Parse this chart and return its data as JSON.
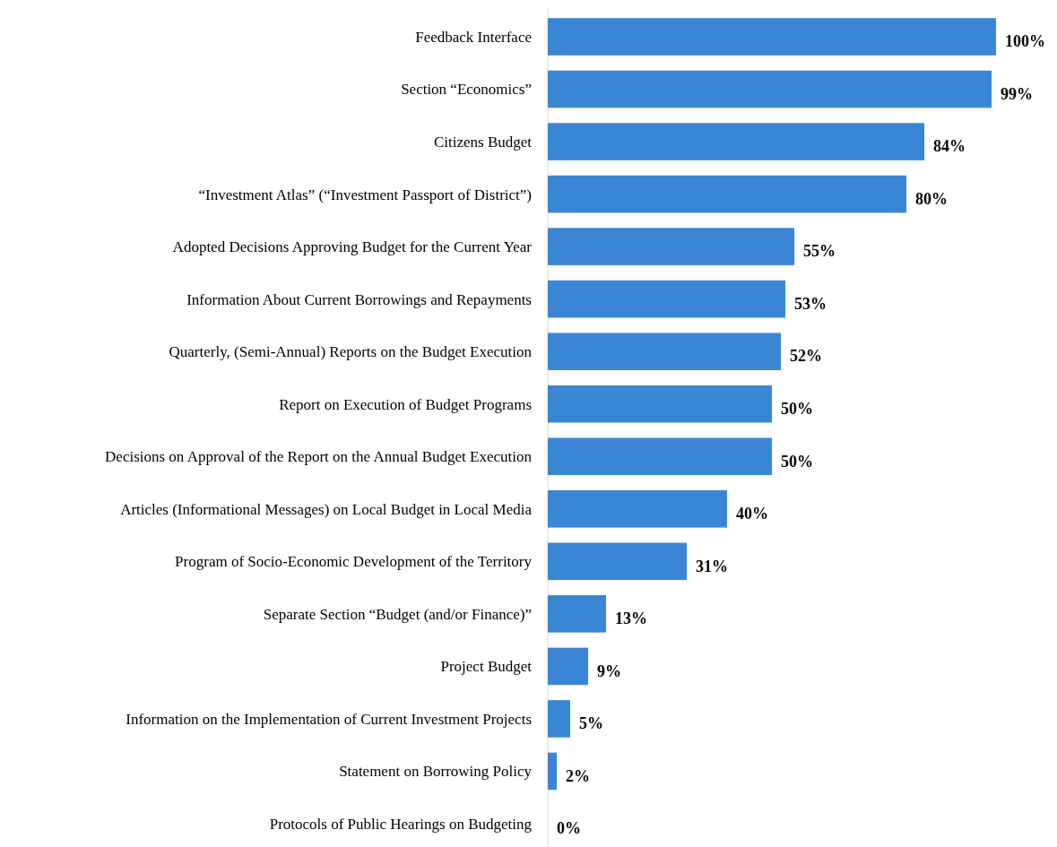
{
  "chart_data": {
    "type": "bar",
    "orientation": "horizontal",
    "color": "#3a86d4",
    "categories": [
      "Feedback Interface",
      "Section “Economics”",
      "Citizens Budget",
      "“Investment Atlas” (“Investment Passport of District”)",
      "Adopted Decisions Approving Budget for the Current Year",
      "Information About Current Borrowings and Repayments",
      "Quarterly, (Semi-Annual) Reports on the Budget Execution",
      "Report on Execution of Budget Programs",
      "Decisions on Approval of the Report on the Annual Budget Execution",
      "Articles (Informational Messages) on Local Budget in Local Media",
      "Program of Socio-Economic Development of the Territory",
      "Separate Section “Budget (and/or Finance)”",
      "Project Budget",
      "Information on the Implementation of Current Investment Projects",
      "Statement on Borrowing Policy",
      "Protocols of Public Hearings on Budgeting"
    ],
    "values": [
      100,
      99,
      84,
      80,
      55,
      53,
      52,
      50,
      50,
      40,
      31,
      13,
      9,
      5,
      2,
      0
    ],
    "value_labels": [
      "100%",
      "99%",
      "84%",
      "80%",
      "55%",
      "53%",
      "52%",
      "50%",
      "50%",
      "40%",
      "31%",
      "13%",
      "9%",
      "5%",
      "2%",
      "0%"
    ]
  }
}
